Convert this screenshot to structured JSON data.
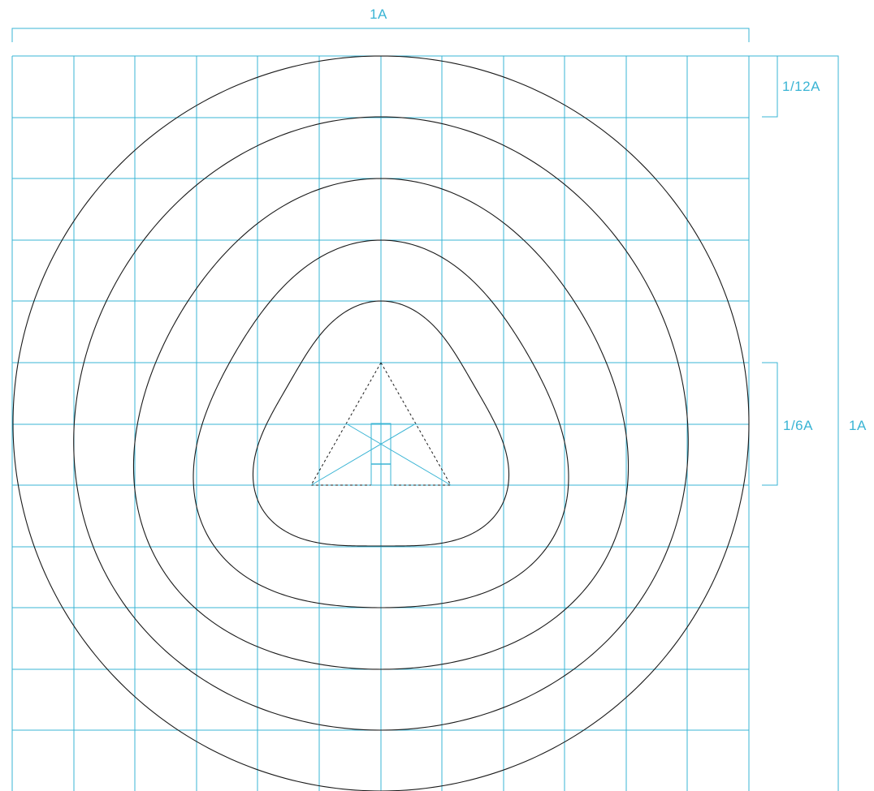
{
  "labels": {
    "top_width": "1A",
    "right_cell": "1/12A",
    "right_center": "1/6A",
    "right_full": "1A"
  },
  "colors": {
    "guide": "#3ab4d4",
    "shape": "#1a1a1a",
    "background": "#ffffff"
  },
  "grid": {
    "divisions": 12
  },
  "shapes": {
    "contour_count": 5,
    "outer_contour": "circle",
    "inner_contour": "rounded-triangle"
  }
}
